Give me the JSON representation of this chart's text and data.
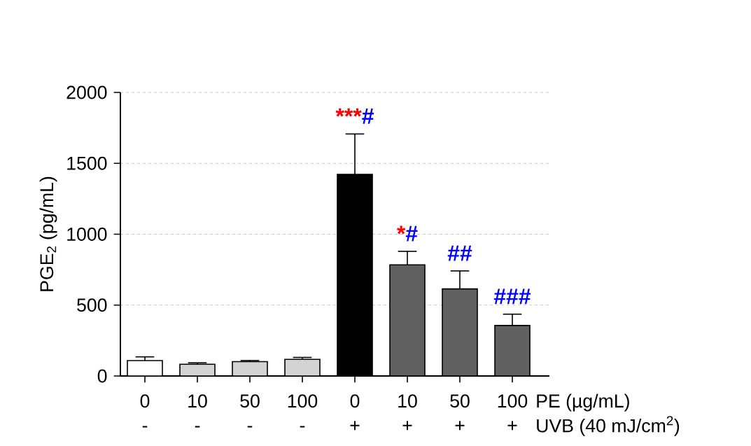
{
  "chart_data": {
    "type": "bar",
    "ylabel": "PGE$_{2}$ (pg/mL)",
    "xlabel": "PE (µg/mL)",
    "categories": [
      "0",
      "10",
      "50",
      "100",
      "0",
      "10",
      "50",
      "100"
    ],
    "values": [
      109,
      83,
      101,
      117,
      1422,
      784,
      614,
      356
    ],
    "errors": [
      26,
      10,
      8,
      14,
      285,
      95,
      127,
      80
    ],
    "colors": [
      "#ffffff",
      "#d3d3d3",
      "#d3d3d3",
      "#d3d3d3",
      "#000000",
      "#606060",
      "#606060",
      "#606060"
    ],
    "ylim": [
      0,
      2000
    ],
    "yticks": [
      0,
      500,
      1000,
      1500,
      2000
    ],
    "grid": "y",
    "annotations": [
      "-",
      "-",
      "-",
      "-",
      "+",
      "+",
      "+",
      "+",
      "UVB (40 mJ/cm$^{2}$)",
      "***",
      "#",
      "*",
      "#",
      "##",
      "###"
    ]
  }
}
